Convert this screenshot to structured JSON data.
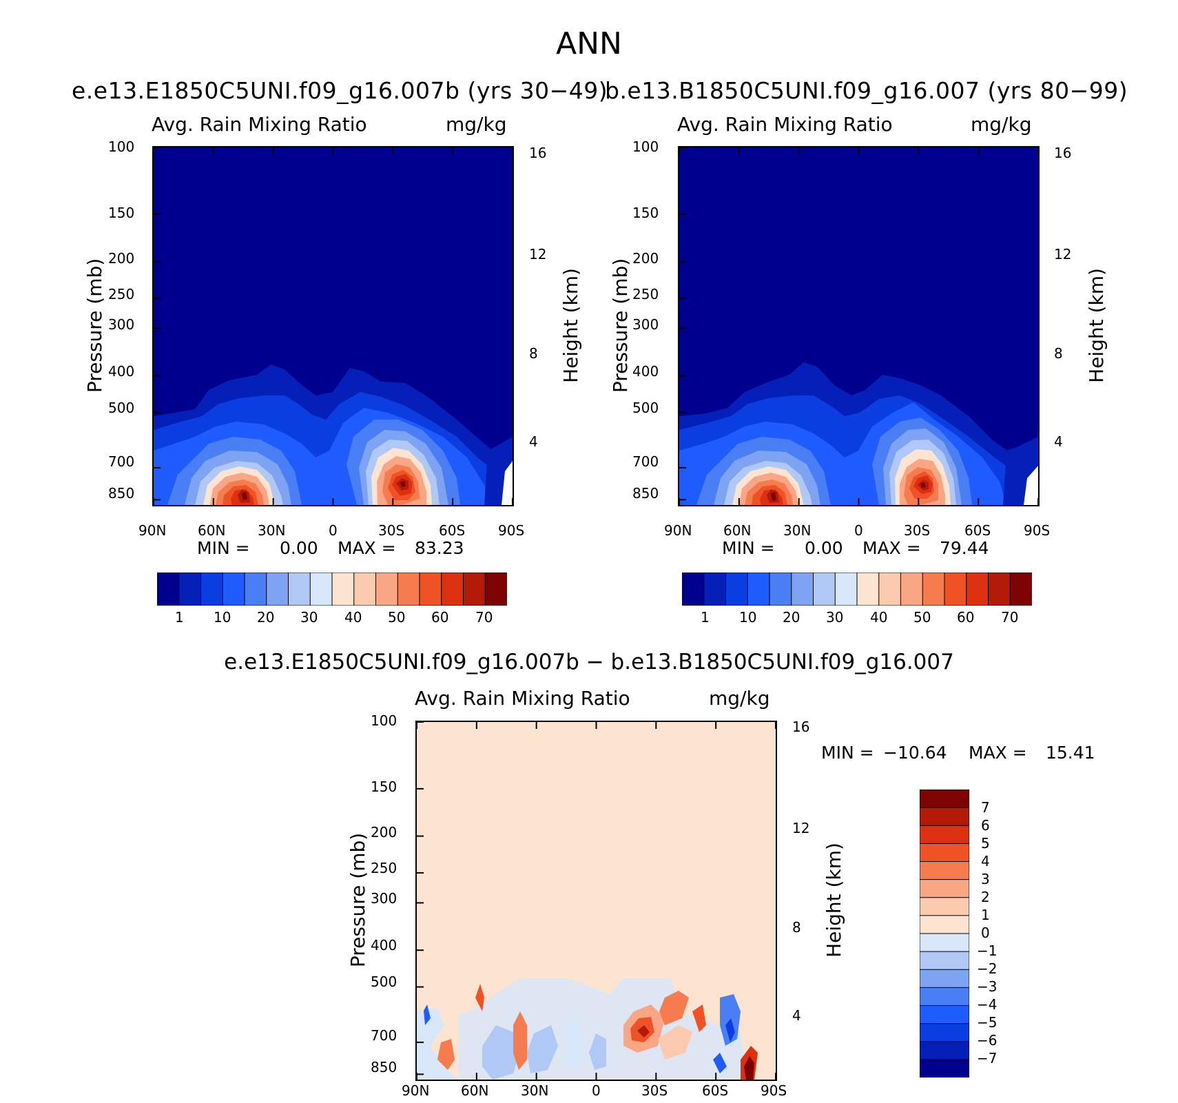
{
  "figure": {
    "title": "ANN",
    "left_case": "e.e13.E1850C5UNI.f09_g16.007b (yrs 30−49)",
    "right_case": "b.e13.B1850C5UNI.f09_g16.007 (yrs 80−99)",
    "diff_title": "e.e13.E1850C5UNI.f09_g16.007b − b.e13.B1850C5UNI.f09_g16.007"
  },
  "chart_data": [
    {
      "type": "contour",
      "panel": "left",
      "title": "Avg. Rain Mixing Ratio",
      "units": "mg/kg",
      "xlabel": "",
      "ylabel": "Pressure (mb)",
      "ylabel_right": "Height (km)",
      "x_ticks": [
        "90N",
        "60N",
        "30N",
        "0",
        "30S",
        "60S",
        "90S"
      ],
      "y_ticks": [
        100,
        150,
        200,
        250,
        300,
        400,
        500,
        700,
        850
      ],
      "y_right_ticks": [
        16,
        12,
        8,
        4
      ],
      "ylim": [
        100,
        1000
      ],
      "min_label": "MIN =",
      "min_value": "0.00",
      "max_label": "MAX =",
      "max_value": "83.23",
      "min": 0.0,
      "max": 83.23,
      "colorbar_labels": [
        "1",
        "10",
        "20",
        "30",
        "40",
        "50",
        "60",
        "70"
      ],
      "maxima": [
        {
          "lat": 38,
          "pressure": 790,
          "value": 83.23
        },
        {
          "lat": -36,
          "pressure": 740,
          "value": 80
        }
      ]
    },
    {
      "type": "contour",
      "panel": "right",
      "title": "Avg. Rain Mixing Ratio",
      "units": "mg/kg",
      "xlabel": "",
      "ylabel": "Pressure (mb)",
      "ylabel_right": "Height (km)",
      "x_ticks": [
        "90N",
        "60N",
        "30N",
        "0",
        "30S",
        "60S",
        "90S"
      ],
      "y_ticks": [
        100,
        150,
        200,
        250,
        300,
        400,
        500,
        700,
        850
      ],
      "y_right_ticks": [
        16,
        12,
        8,
        4
      ],
      "ylim": [
        100,
        1000
      ],
      "min_label": "MIN =",
      "min_value": "0.00",
      "max_label": "MAX =",
      "max_value": "79.44",
      "min": 0.0,
      "max": 79.44,
      "colorbar_labels": [
        "1",
        "10",
        "20",
        "30",
        "40",
        "50",
        "60",
        "70"
      ],
      "maxima": [
        {
          "lat": 40,
          "pressure": 790,
          "value": 79.44
        },
        {
          "lat": -36,
          "pressure": 730,
          "value": 75
        }
      ]
    },
    {
      "type": "contour",
      "panel": "difference",
      "title": "Avg. Rain Mixing Ratio",
      "units": "mg/kg",
      "xlabel": "",
      "ylabel": "Pressure (mb)",
      "ylabel_right": "Height (km)",
      "x_ticks": [
        "90N",
        "60N",
        "30N",
        "0",
        "30S",
        "60S",
        "90S"
      ],
      "y_ticks": [
        100,
        150,
        200,
        250,
        300,
        400,
        500,
        700,
        850
      ],
      "y_right_ticks": [
        16,
        12,
        8,
        4
      ],
      "ylim": [
        100,
        1000
      ],
      "min_label": "MIN =",
      "min_value": "−10.64",
      "max_label": "MAX =",
      "max_value": "15.41",
      "min": -10.64,
      "max": 15.41,
      "colorbar_labels": [
        "7",
        "6",
        "5",
        "4",
        "3",
        "2",
        "1",
        "0",
        "−1",
        "−2",
        "−3",
        "−4",
        "−5",
        "−6",
        "−7"
      ]
    }
  ],
  "colors": {
    "abs_scale": [
      "#00008f",
      "#0520b8",
      "#0a3ee0",
      "#1f5cff",
      "#4a7ef5",
      "#7ea3f2",
      "#afc8f5",
      "#d8e6fa",
      "#fde4d0",
      "#fbc9ae",
      "#f8a684",
      "#f67b4f",
      "#ef5325",
      "#dc3010",
      "#b41a08",
      "#7d0202"
    ],
    "diff_scale": [
      "#7d0202",
      "#b41a08",
      "#dc3010",
      "#ef5325",
      "#f67b4f",
      "#f8a684",
      "#fbc9ae",
      "#fde4d0",
      "#d8e6fa",
      "#afc8f5",
      "#7ea3f2",
      "#4a7ef5",
      "#1f5cff",
      "#0a3ee0",
      "#0520b8",
      "#00008f"
    ]
  }
}
